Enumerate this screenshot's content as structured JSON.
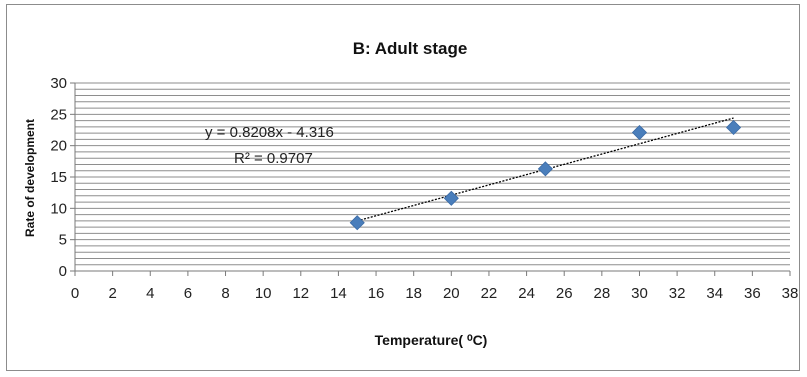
{
  "chart_data": {
    "type": "scatter",
    "title": "B: Adult stage",
    "xlabel": "Temperature( ⁰C)",
    "ylabel": "Rate of development",
    "xlim": [
      0,
      38
    ],
    "ylim": [
      0,
      30
    ],
    "x_ticks": [
      0,
      2,
      4,
      6,
      8,
      10,
      12,
      14,
      16,
      18,
      20,
      22,
      24,
      26,
      28,
      30,
      32,
      34,
      36,
      38
    ],
    "y_ticks": [
      0,
      5,
      10,
      15,
      20,
      25,
      30
    ],
    "grid": true,
    "series": [
      {
        "marker": "diamond",
        "color": "#4a7ebb",
        "points": [
          {
            "x": 15,
            "y": 7.7
          },
          {
            "x": 20,
            "y": 11.6
          },
          {
            "x": 25,
            "y": 16.3
          },
          {
            "x": 30,
            "y": 22.1
          },
          {
            "x": 35,
            "y": 22.9
          }
        ]
      }
    ],
    "trendline": {
      "type": "linear",
      "slope": 0.8208,
      "intercept": -4.316,
      "x_range": [
        15,
        35
      ],
      "style": "dotted",
      "color": "#000000"
    },
    "annotations": {
      "equation": "y = 0.8208x - 4.316",
      "r_squared": "R² = 0.9707"
    }
  }
}
